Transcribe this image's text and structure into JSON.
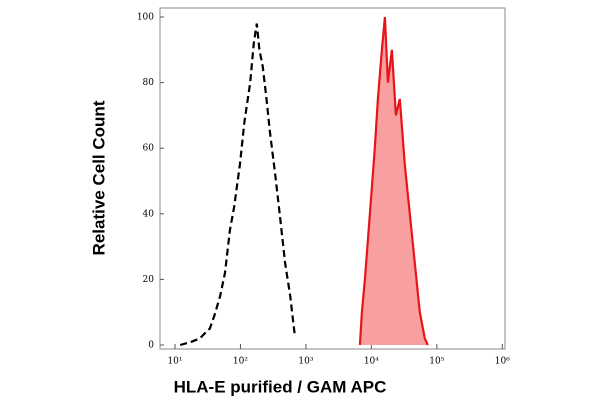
{
  "chart_data": {
    "type": "histogram-overlay",
    "xlabel": "HLA-E purified / GAM APC",
    "ylabel": "Relative Cell Count",
    "xscale": "log",
    "xlim": [
      5.9,
      1100000
    ],
    "ylim": [
      0,
      100
    ],
    "xticks": [
      {
        "value": 10,
        "label": "10¹"
      },
      {
        "value": 100,
        "label": "10²"
      },
      {
        "value": 1000,
        "label": "10³"
      },
      {
        "value": 10000,
        "label": "10⁴"
      },
      {
        "value": 100000,
        "label": "10⁵"
      },
      {
        "value": 1000000,
        "label": "10⁶"
      }
    ],
    "yticks": [
      0,
      20,
      40,
      60,
      80,
      100
    ],
    "series": [
      {
        "color": "#000000",
        "style": "dashed",
        "x": [
          12,
          18,
          24,
          30,
          34,
          40,
          49,
          58,
          69,
          80,
          98,
          115,
          141,
          160,
          178,
          195,
          219,
          250,
          282,
          340,
          398,
          480,
          575,
          640,
          676
        ],
        "values": [
          0,
          1,
          2,
          4,
          5,
          9,
          15,
          22,
          35,
          42,
          55,
          68,
          80,
          92,
          98,
          90,
          85,
          75,
          65,
          52,
          40,
          25,
          15,
          7,
          3
        ]
      },
      {
        "color": "#e8141c",
        "fill": "#f8a0a0",
        "style": "filled",
        "x": [
          6670,
          7160,
          7960,
          9490,
          11300,
          12600,
          14500,
          16100,
          17900,
          20600,
          23700,
          27200,
          32400,
          38700,
          46100,
          55000,
          65600,
          72900
        ],
        "values": [
          0,
          10,
          20,
          40,
          60,
          75,
          90,
          100,
          80,
          90,
          70,
          75,
          55,
          40,
          25,
          10,
          2,
          0
        ]
      }
    ]
  }
}
